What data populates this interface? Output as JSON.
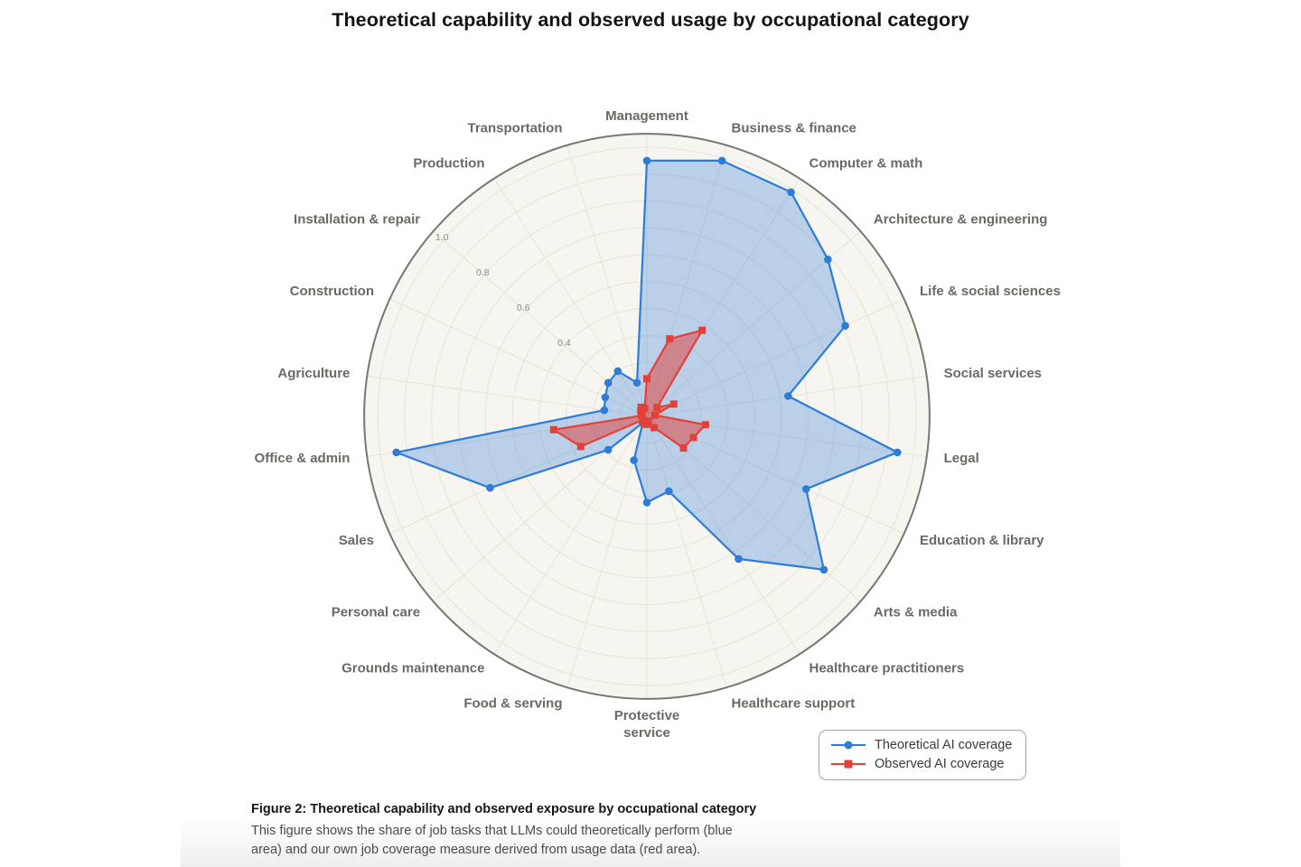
{
  "page": {
    "title": "Theoretical capability and observed usage by occupational category"
  },
  "chart_data": {
    "type": "radar",
    "categories": [
      "Management",
      "Business & finance",
      "Computer & math",
      "Architecture & engineering",
      "Life & social sciences",
      "Social services",
      "Legal",
      "Education & library",
      "Arts & media",
      "Healthcare practitioners",
      "Healthcare support",
      "Protective\nservice",
      "Food & serving",
      "Grounds maintenance",
      "Personal care",
      "Sales",
      "Office & admin",
      "Agriculture",
      "Construction",
      "Installation & repair",
      "Production",
      "Transportation"
    ],
    "series": [
      {
        "name": "Theoretical AI coverage",
        "color": "#2e7cd6",
        "marker": "circle",
        "values": [
          0.95,
          0.99,
          0.99,
          0.89,
          0.81,
          0.53,
          0.94,
          0.65,
          0.87,
          0.63,
          0.29,
          0.32,
          0.17,
          0.03,
          0.19,
          0.64,
          0.94,
          0.16,
          0.17,
          0.19,
          0.2,
          0.13
        ]
      },
      {
        "name": "Observed AI coverage",
        "color": "#e2413a",
        "marker": "square",
        "values": [
          0.14,
          0.3,
          0.38,
          0.05,
          0.11,
          0.03,
          0.22,
          0.19,
          0.18,
          0.05,
          0.02,
          0.03,
          0.03,
          0.02,
          0.02,
          0.27,
          0.35,
          0.02,
          0.02,
          0.03,
          0.04,
          0.03
        ]
      }
    ],
    "radial_ticks": [
      "0.4",
      "0.6",
      "0.8",
      "1.0"
    ],
    "radial_tick_values": [
      0.4,
      0.6,
      0.8,
      1.0
    ],
    "tick_angle_deg": 139.1,
    "rlim": [
      0,
      1.05
    ],
    "ring_step": 0.1,
    "start_angle_deg": 90,
    "direction": "clockwise",
    "grid": true,
    "legend_position": "bottom-right"
  },
  "caption": {
    "title": "Figure 2: Theoretical capability and observed exposure by occupational category",
    "body": "This figure shows the share of job tasks that LLMs could theoretically perform (blue area) and our own job coverage measure derived from usage data (red area)."
  }
}
